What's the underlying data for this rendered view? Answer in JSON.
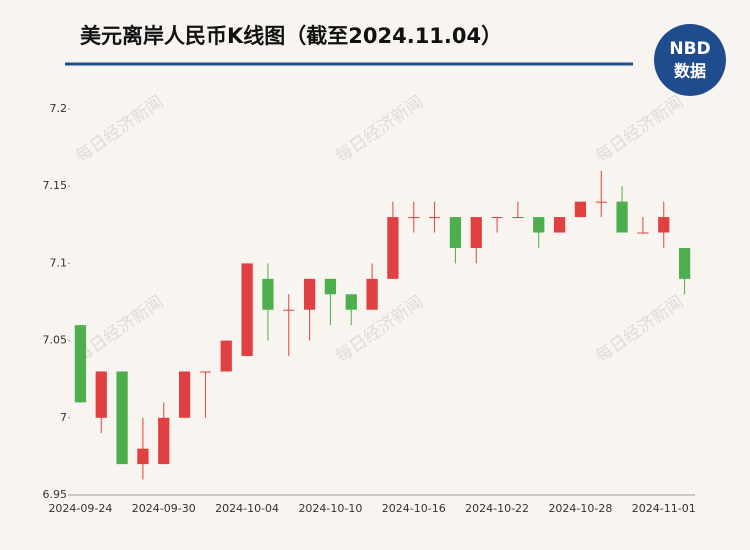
{
  "chart_data": {
    "type": "candlestick",
    "title": "美元离岸人民币K线图（截至2024.11.04）",
    "logo": {
      "top": "NBD",
      "bottom": "数据"
    },
    "watermark": "每日经济新闻",
    "categories": [
      "2024-09-24",
      null,
      null,
      null,
      "2024-09-30",
      null,
      null,
      null,
      "2024-10-04",
      null,
      null,
      null,
      "2024-10-10",
      null,
      null,
      null,
      "2024-10-16",
      null,
      null,
      null,
      "2024-10-22",
      null,
      null,
      null,
      "2024-10-28",
      null,
      null,
      null,
      "2024-11-01",
      null
    ],
    "open": [
      7.06,
      7.0,
      7.03,
      6.97,
      6.97,
      7.0,
      7.03,
      7.03,
      7.04,
      7.09,
      7.07,
      7.07,
      7.09,
      7.08,
      7.07,
      7.09,
      7.13,
      7.13,
      7.13,
      7.11,
      7.13,
      7.13,
      7.13,
      7.12,
      7.13,
      7.14,
      7.14,
      7.12,
      7.12,
      7.11
    ],
    "high": [
      7.06,
      7.03,
      7.03,
      7.0,
      7.01,
      7.03,
      7.03,
      7.05,
      7.1,
      7.1,
      7.08,
      7.09,
      7.09,
      7.08,
      7.1,
      7.14,
      7.14,
      7.14,
      7.13,
      7.13,
      7.13,
      7.14,
      7.13,
      7.13,
      7.14,
      7.16,
      7.15,
      7.13,
      7.14,
      7.11
    ],
    "low": [
      7.01,
      6.99,
      6.97,
      6.96,
      6.97,
      7.0,
      7.0,
      7.03,
      7.04,
      7.05,
      7.04,
      7.05,
      7.06,
      7.06,
      7.07,
      7.09,
      7.12,
      7.12,
      7.1,
      7.1,
      7.12,
      7.13,
      7.11,
      7.12,
      7.13,
      7.13,
      7.12,
      7.12,
      7.11,
      7.08
    ],
    "close": [
      7.01,
      7.03,
      6.97,
      6.98,
      7.0,
      7.03,
      7.03,
      7.05,
      7.1,
      7.07,
      7.07,
      7.09,
      7.08,
      7.07,
      7.09,
      7.13,
      7.13,
      7.13,
      7.11,
      7.13,
      7.13,
      7.13,
      7.12,
      7.13,
      7.14,
      7.14,
      7.12,
      7.12,
      7.13,
      7.09
    ],
    "up_color": "#e04040",
    "down_color": "#4cae4c",
    "ylim": [
      6.95,
      7.2
    ],
    "yticks": [
      6.95,
      7,
      7.05,
      7.1,
      7.15,
      7.2
    ]
  }
}
